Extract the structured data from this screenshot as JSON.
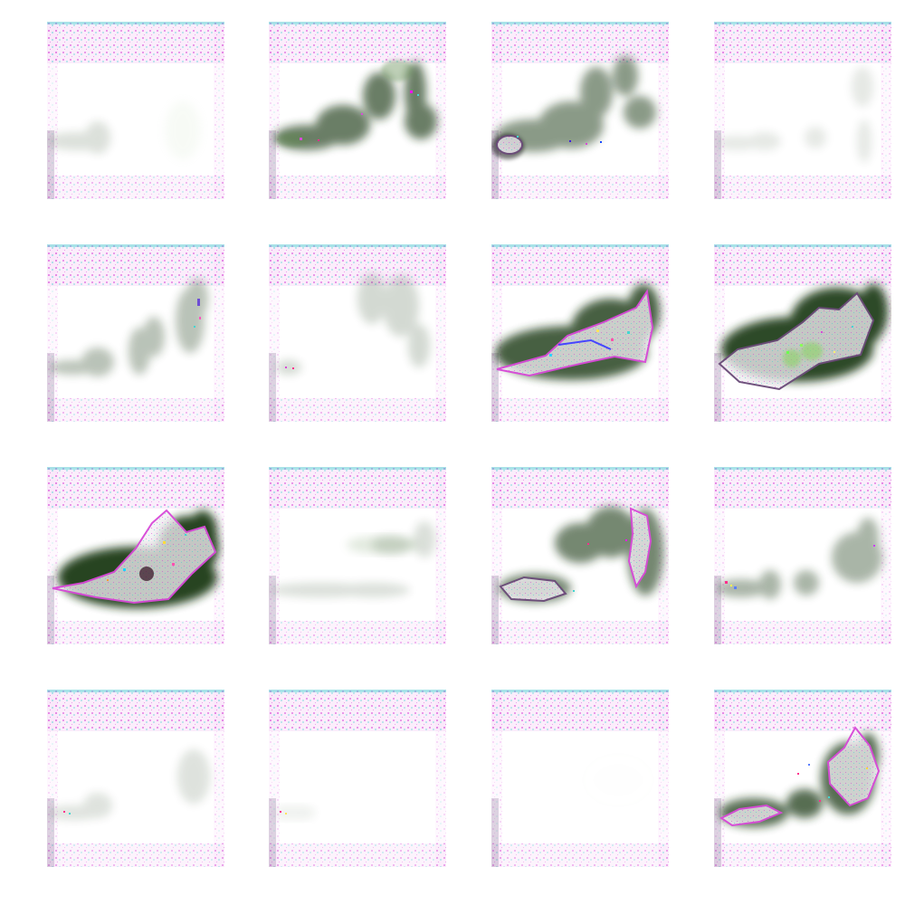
{
  "figure": {
    "rows": 4,
    "cols": 4,
    "background": "#ffffff",
    "colors": {
      "dark_green": "#1d3a14",
      "mid_green": "#5f8a4d",
      "light_green": "#b7d5a8",
      "magenta": "#d84ad8",
      "pale_magenta": "#efb4ef",
      "cyan": "#43d6d1",
      "white_blob": "#f3eff4",
      "lavender": "#c9b8ea",
      "purple_edge": "#6b4c79"
    },
    "samples": [
      {
        "intensity": 0.28
      },
      {
        "intensity": 0.82
      },
      {
        "intensity": 0.73
      },
      {
        "intensity": 0.3
      },
      {
        "intensity": 0.55
      },
      {
        "intensity": 0.42
      },
      {
        "intensity": 0.95
      },
      {
        "intensity": 1.0
      },
      {
        "intensity": 1.0
      },
      {
        "intensity": 0.45
      },
      {
        "intensity": 0.84
      },
      {
        "intensity": 0.62
      },
      {
        "intensity": 0.4
      },
      {
        "intensity": 0.22
      },
      {
        "intensity": 0.08
      },
      {
        "intensity": 0.88
      }
    ]
  }
}
